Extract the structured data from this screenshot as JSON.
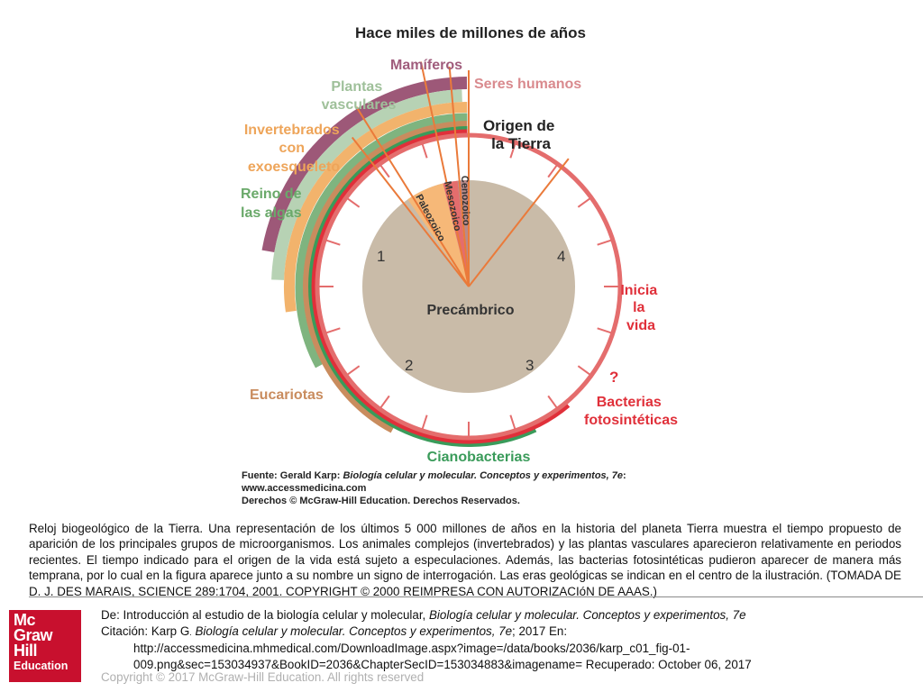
{
  "diagram": {
    "title": "Hace miles de millones de años",
    "labels": {
      "mamiferos": "Mamíferos",
      "seres_humanos": "Seres humanos",
      "plantas": [
        "Plantas",
        "vasculares"
      ],
      "invertebrados": [
        "Invertebrados",
        "con",
        "exoesqueleto"
      ],
      "algas": [
        "Reino de",
        "las algas"
      ],
      "origen": [
        "Origen de",
        "la Tierra"
      ],
      "inicia": [
        "Inicia",
        "la",
        "vida"
      ],
      "question": "?",
      "bacterias": [
        "Bacterias",
        "fotosintéticas"
      ],
      "eucariotas": "Eucariotas",
      "cianobacterias": "Cianobacterias",
      "precambrico": "Precámbrico",
      "paleozoico": "Paleozoico",
      "mesozoico": "Mesozoico",
      "cenozoico": "Cenozoico"
    },
    "clock_numbers": [
      "1",
      "2",
      "3",
      "4"
    ],
    "source": [
      "Fuente: Gerald Karp: ",
      "Biología celular y molecular. Conceptos y experimentos, 7e",
      ":",
      "www.accessmedicina.com",
      "Derechos © McGraw-Hill Education. Derechos Reservados."
    ],
    "colors": {
      "precambrian": "#c9bba8",
      "paleozoic": "#f6b878",
      "mesozoic": "#e46d6d",
      "cenozoic": "#b88a8a",
      "ring_green": "#3a9b5a",
      "ring_red": "#e46d6d",
      "ring_light_green": "#7fb47f",
      "ring_brown": "#c98c5e",
      "ring_orange": "#f2b36c",
      "ring_pale": "#b7d2b4",
      "ring_mauve": "#9d5878",
      "line_orange": "#ea7a3a",
      "bright_red": "#e0303a"
    }
  },
  "caption": " Reloj biogeológico de la Tierra. Una representación de los últimos 5 000 millones de años en la historia del planeta Tierra muestra el tiempo propuesto de aparición de los principales grupos de microorganismos. Los animales complejos (invertebrados) y las plantas vasculares aparecieron relativamente en periodos recientes. El tiempo indicado para el origen de la vida está sujeto a especulaciones. Además, las bacterias fotosintéticas pudieron aparecer de manera más temprana, por lo cual en la figura aparece junto a su nombre un signo de interrogación. Las eras geológicas se indican en el centro de la ilustración. (TOMADA DE D. J. DES MARAIS, SCIENCE 289:1704, 2001. COPYRIGHT © 2000 REIMPRESA CON AUTORIZACIóN DE AAAS.)",
  "footer": {
    "logo_lines": [
      "Mc",
      "Graw",
      "Hill",
      "Education"
    ],
    "from_prefix": "De: Introducción al estudio de la biología celular y molecular, ",
    "from_book": "Biología celular y molecular. Conceptos y experimentos, 7e",
    "cite_prefix": "Citación: Karp G",
    "cite_dot": ".",
    "cite_book": " Biología celular y molecular. Conceptos y experimentos, 7e",
    "cite_suffix": "; 2017 En:",
    "url_line1": "http://accessmedicina.mhmedical.com/DownloadImage.aspx?image=/data/books/2036/karp_c01_fig-01-",
    "url_line2": "009.png&sec=153034937&BookID=2036&ChapterSecID=153034883&imagename= Recuperado: October 06, 2017",
    "copyright": "Copyright © 2017 McGraw-Hill Education. All rights reserved"
  }
}
